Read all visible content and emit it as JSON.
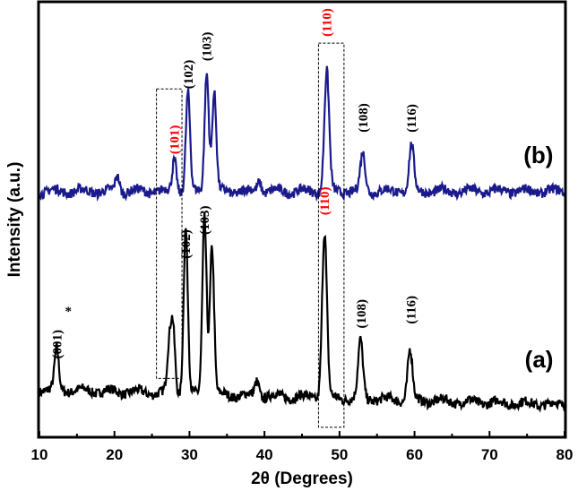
{
  "chart_data": {
    "type": "line",
    "title": "",
    "xlabel": "2θ (Degrees)",
    "ylabel": "Intensity (a.u.)",
    "xlim": [
      10,
      80
    ],
    "ylim": [
      0,
      100
    ],
    "xticks": [
      "10",
      "20",
      "30",
      "40",
      "50",
      "60",
      "70",
      "80"
    ],
    "grid": false,
    "series": [
      {
        "name": "(a)",
        "color": "#000000",
        "baseline_start": 11,
        "baseline_end": 7.5,
        "label_y": 16,
        "peaks": [
          [
            12.3,
            20
          ],
          [
            27.3,
            20
          ],
          [
            27.8,
            25
          ],
          [
            29.5,
            48
          ],
          [
            32.0,
            51
          ],
          [
            33.0,
            44
          ],
          [
            39.0,
            13
          ],
          [
            48.0,
            47
          ],
          [
            52.8,
            22
          ],
          [
            59.4,
            20
          ]
        ]
      },
      {
        "name": "(b)",
        "color": "#1a1a8c",
        "baseline_start": 56.5,
        "baseline_end": 56.5,
        "label_y": 63,
        "peaks": [
          [
            20.4,
            60
          ],
          [
            28.0,
            64
          ],
          [
            29.8,
            79
          ],
          [
            32.3,
            84
          ],
          [
            33.3,
            79
          ],
          [
            39.3,
            59
          ],
          [
            48.3,
            84
          ],
          [
            53.1,
            65
          ],
          [
            59.6,
            67
          ]
        ]
      }
    ],
    "annotations": [
      {
        "text": "(001)",
        "x": 12.3,
        "y": 18,
        "color": "#000000"
      },
      {
        "text": "*",
        "x": 13.4,
        "y": 28,
        "color": "#000000",
        "rotate": false
      },
      {
        "text": "(102)",
        "x": 29.5,
        "y": 41,
        "color": "#000000"
      },
      {
        "text": "(103)",
        "x": 32.0,
        "y": 46.5,
        "color": "#000000"
      },
      {
        "text": "(110)",
        "x": 48.0,
        "y": 51,
        "color": "#ff0000"
      },
      {
        "text": "(108)",
        "x": 52.9,
        "y": 25,
        "color": "#000000"
      },
      {
        "text": "(116)",
        "x": 59.5,
        "y": 26,
        "color": "#000000"
      },
      {
        "text": "(101)",
        "x": 28.0,
        "y": 65,
        "color": "#ff0000"
      },
      {
        "text": "(102)",
        "x": 29.8,
        "y": 80,
        "color": "#000000"
      },
      {
        "text": "(103)",
        "x": 32.3,
        "y": 86.4,
        "color": "#000000"
      },
      {
        "text": "(110)",
        "x": 48.3,
        "y": 92,
        "color": "#ff0000"
      },
      {
        "text": "(108)",
        "x": 53.1,
        "y": 70,
        "color": "#000000"
      },
      {
        "text": "(116)",
        "x": 59.6,
        "y": 70,
        "color": "#000000"
      }
    ],
    "boxes": [
      {
        "x0": 25.6,
        "x1": 29.0,
        "y0": 13.5,
        "y1": 80
      },
      {
        "x0": 47.2,
        "x1": 50.6,
        "y0": 2.3,
        "y1": 90.5
      }
    ]
  }
}
